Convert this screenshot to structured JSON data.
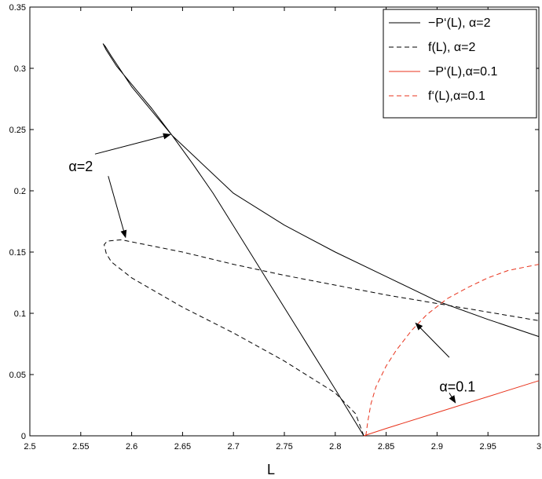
{
  "chart_data": {
    "type": "line",
    "title": "",
    "xlabel": "L",
    "ylabel": "",
    "xlim": [
      2.5,
      3.0
    ],
    "ylim": [
      0,
      0.35
    ],
    "xticks": [
      2.5,
      2.55,
      2.6,
      2.65,
      2.7,
      2.75,
      2.8,
      2.85,
      2.9,
      2.95,
      3
    ],
    "xtick_labels": [
      "2.5",
      "2.55",
      "2.6",
      "2.65",
      "2.7",
      "2.75",
      "2.8",
      "2.85",
      "2.9",
      "2.95",
      "3"
    ],
    "yticks": [
      0,
      0.05,
      0.1,
      0.15,
      0.2,
      0.25,
      0.3,
      0.35
    ],
    "ytick_labels": [
      "0",
      "0.05",
      "0.1",
      "0.15",
      "0.2",
      "0.25",
      "0.3",
      "0.35"
    ],
    "grid": false,
    "legend_position": "top-right",
    "series": [
      {
        "name": "−P‘(L), α=2",
        "color": "#000000",
        "dash": "solid",
        "x": [
          2.828,
          2.8,
          2.77,
          2.74,
          2.71,
          2.68,
          2.66,
          2.64,
          2.62,
          2.6,
          2.585,
          2.575,
          2.572,
          2.574,
          2.58,
          2.6,
          2.64,
          2.7,
          2.75,
          2.8,
          2.85,
          2.9,
          2.95,
          3.0
        ],
        "y": [
          0,
          0.038,
          0.078,
          0.118,
          0.158,
          0.198,
          0.222,
          0.245,
          0.267,
          0.287,
          0.302,
          0.315,
          0.32,
          0.318,
          0.31,
          0.285,
          0.245,
          0.198,
          0.172,
          0.15,
          0.13,
          0.11,
          0.095,
          0.081
        ]
      },
      {
        "name": "f(L), α=2",
        "color": "#000000",
        "dash": "dashed",
        "x": [
          2.828,
          2.82,
          2.8,
          2.75,
          2.7,
          2.65,
          2.6,
          2.58,
          2.575,
          2.573,
          2.576,
          2.59,
          2.65,
          2.7,
          2.75,
          2.8,
          2.85,
          2.9,
          2.95,
          3.0
        ],
        "y": [
          0,
          0.018,
          0.035,
          0.061,
          0.084,
          0.105,
          0.129,
          0.142,
          0.149,
          0.156,
          0.159,
          0.16,
          0.15,
          0.14,
          0.131,
          0.123,
          0.115,
          0.108,
          0.101,
          0.094
        ]
      },
      {
        "name": "−P‘(L),α=0.1",
        "color": "#e8331c",
        "dash": "solid",
        "x": [
          2.828,
          2.85,
          2.9,
          2.95,
          3.0
        ],
        "y": [
          0,
          0.006,
          0.019,
          0.032,
          0.045
        ]
      },
      {
        "name": "f‘(L),α=0.1",
        "color": "#e8331c",
        "dash": "dashed",
        "x": [
          2.83,
          2.832,
          2.835,
          2.84,
          2.85,
          2.86,
          2.875,
          2.89,
          2.91,
          2.93,
          2.95,
          2.97,
          3.0
        ],
        "y": [
          0,
          0.012,
          0.026,
          0.04,
          0.057,
          0.07,
          0.086,
          0.099,
          0.112,
          0.121,
          0.129,
          0.135,
          0.14
        ]
      }
    ],
    "annotations": [
      {
        "text": "α=2",
        "text_at": [
          2.55,
          0.22
        ],
        "arrows": [
          {
            "from": [
              2.564,
              0.23
            ],
            "to": [
              2.638,
              0.246
            ]
          },
          {
            "from": [
              2.577,
              0.212
            ],
            "to": [
              2.594,
              0.162
            ]
          }
        ]
      },
      {
        "text": "α=0.1",
        "text_at": [
          2.92,
          0.04
        ],
        "arrows": [
          {
            "from": [
              2.912,
              0.064
            ],
            "to": [
              2.879,
              0.092
            ]
          },
          {
            "from": [
              2.912,
              0.035
            ],
            "to": [
              2.918,
              0.027
            ]
          }
        ]
      }
    ]
  }
}
